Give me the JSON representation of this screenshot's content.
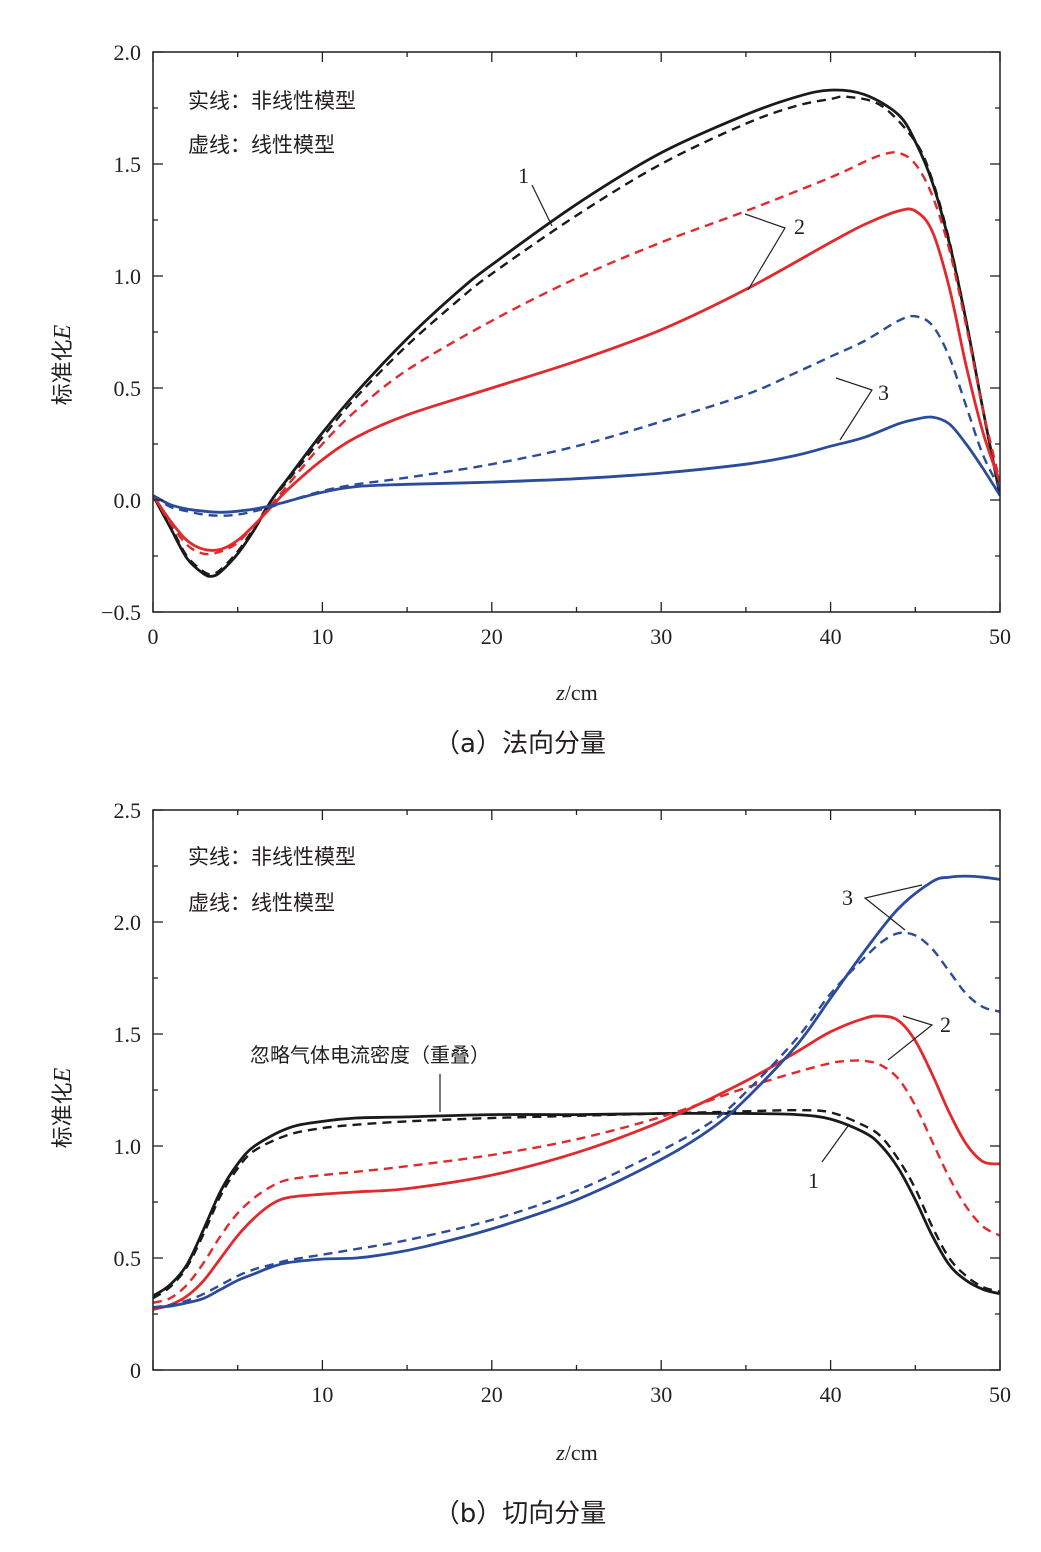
{
  "chart_data": [
    {
      "type": "line",
      "caption": "（a）法向分量",
      "xlabel_italic": "z",
      "xlabel_unit": "/cm",
      "ylabel": "标准化",
      "ylabel_italic": "E",
      "xlim": [
        0,
        50
      ],
      "ylim": [
        -0.5,
        2.0
      ],
      "xticks": [
        0,
        10,
        20,
        30,
        40,
        50
      ],
      "xtick_labels": [
        "0",
        "10",
        "20",
        "30",
        "40",
        "50"
      ],
      "yticks": [
        -0.5,
        0.0,
        0.5,
        1.0,
        1.5,
        2.0
      ],
      "ytick_labels": [
        "−0.5",
        "0.0",
        "0.5",
        "1.0",
        "1.5",
        "2.0"
      ],
      "legend_lines": [
        "实线：非线性模型",
        "虚线：线性模型"
      ],
      "legend_position": "top-left",
      "grid": false,
      "series": [
        {
          "label": "1",
          "model": "solid",
          "color": "#1a1a1a",
          "x": [
            0,
            1,
            2,
            3,
            3.5,
            4,
            5,
            6,
            7,
            8,
            10,
            12,
            15,
            18,
            20,
            25,
            30,
            35,
            38,
            40,
            42,
            44,
            45,
            46,
            47,
            48,
            49,
            50
          ],
          "y": [
            0.02,
            -0.12,
            -0.26,
            -0.33,
            -0.34,
            -0.32,
            -0.24,
            -0.13,
            0.0,
            0.1,
            0.3,
            0.48,
            0.72,
            0.93,
            1.05,
            1.32,
            1.55,
            1.72,
            1.8,
            1.83,
            1.81,
            1.72,
            1.6,
            1.42,
            1.15,
            0.8,
            0.4,
            0.02
          ]
        },
        {
          "label": "1",
          "model": "dashed",
          "color": "#1a1a1a",
          "x": [
            0,
            1,
            2,
            3,
            3.5,
            4,
            5,
            6,
            7,
            8,
            10,
            12,
            15,
            18,
            20,
            25,
            30,
            35,
            38,
            40,
            41,
            43,
            45,
            46,
            47,
            48,
            49,
            50
          ],
          "y": [
            0.02,
            -0.11,
            -0.25,
            -0.32,
            -0.33,
            -0.31,
            -0.23,
            -0.12,
            0.0,
            0.09,
            0.28,
            0.46,
            0.69,
            0.89,
            1.01,
            1.27,
            1.5,
            1.68,
            1.76,
            1.79,
            1.8,
            1.76,
            1.6,
            1.43,
            1.16,
            0.8,
            0.4,
            0.02
          ]
        },
        {
          "label": "2",
          "model": "solid",
          "color": "#e02a2e",
          "x": [
            0,
            1,
            2,
            3,
            4,
            5,
            6,
            7,
            8,
            10,
            12,
            15,
            20,
            25,
            30,
            35,
            40,
            42,
            44,
            45,
            46,
            47,
            48,
            49,
            50
          ],
          "y": [
            0.02,
            -0.09,
            -0.18,
            -0.22,
            -0.22,
            -0.18,
            -0.11,
            -0.03,
            0.05,
            0.18,
            0.28,
            0.38,
            0.5,
            0.62,
            0.76,
            0.94,
            1.15,
            1.23,
            1.29,
            1.29,
            1.2,
            0.95,
            0.6,
            0.3,
            0.08
          ]
        },
        {
          "label": "2",
          "model": "dashed",
          "color": "#e02a2e",
          "x": [
            0,
            1,
            2,
            3,
            4,
            5,
            6,
            7,
            8,
            10,
            12,
            15,
            20,
            25,
            30,
            35,
            40,
            42,
            43,
            44,
            45,
            46,
            47,
            48,
            49,
            50
          ],
          "y": [
            0.02,
            -0.1,
            -0.2,
            -0.24,
            -0.23,
            -0.19,
            -0.11,
            -0.02,
            0.07,
            0.25,
            0.4,
            0.58,
            0.8,
            0.99,
            1.15,
            1.29,
            1.44,
            1.51,
            1.54,
            1.55,
            1.5,
            1.36,
            1.12,
            0.78,
            0.4,
            0.08
          ]
        },
        {
          "label": "3",
          "model": "solid",
          "color": "#2b4b9b",
          "x": [
            0,
            1,
            2,
            3,
            4,
            5,
            6,
            7,
            8,
            10,
            12,
            15,
            20,
            25,
            30,
            35,
            38,
            40,
            42,
            44,
            45,
            46,
            47,
            48,
            49,
            50
          ],
          "y": [
            0.02,
            -0.02,
            -0.04,
            -0.05,
            -0.055,
            -0.05,
            -0.04,
            -0.025,
            -0.005,
            0.035,
            0.06,
            0.07,
            0.08,
            0.095,
            0.12,
            0.16,
            0.2,
            0.24,
            0.28,
            0.34,
            0.36,
            0.37,
            0.34,
            0.25,
            0.14,
            0.02
          ]
        },
        {
          "label": "3",
          "model": "dashed",
          "color": "#2b4b9b",
          "x": [
            0,
            1,
            2,
            3,
            4,
            5,
            6,
            7,
            8,
            10,
            12,
            15,
            20,
            25,
            30,
            35,
            38,
            40,
            42,
            44,
            45,
            46,
            47,
            48,
            49,
            50
          ],
          "y": [
            0.02,
            -0.03,
            -0.05,
            -0.065,
            -0.07,
            -0.065,
            -0.05,
            -0.03,
            -0.005,
            0.04,
            0.07,
            0.1,
            0.16,
            0.24,
            0.35,
            0.47,
            0.57,
            0.64,
            0.71,
            0.8,
            0.82,
            0.78,
            0.64,
            0.42,
            0.2,
            0.05
          ]
        }
      ]
    },
    {
      "type": "line",
      "caption": "（b）切向分量",
      "xlabel_italic": "z",
      "xlabel_unit": "/cm",
      "ylabel": "标准化",
      "ylabel_italic": "E",
      "xlim": [
        0,
        50
      ],
      "ylim": [
        0,
        2.5
      ],
      "xticks": [
        10,
        20,
        30,
        40,
        50
      ],
      "xtick_labels": [
        "10",
        "20",
        "30",
        "40",
        "50"
      ],
      "yticks": [
        0,
        0.5,
        1.0,
        1.5,
        2.0,
        2.5
      ],
      "ytick_labels": [
        "0",
        "0.5",
        "1.0",
        "1.5",
        "2.0",
        "2.5"
      ],
      "legend_lines": [
        "实线：非线性模型",
        "虚线：线性模型"
      ],
      "legend_position": "top-left",
      "annotation": "忽略气体电流密度（重叠）",
      "grid": false,
      "series": [
        {
          "label": "1",
          "model": "solid",
          "color": "#1a1a1a",
          "x": [
            0,
            1,
            2,
            3,
            4,
            5,
            6,
            8,
            10,
            12,
            15,
            20,
            25,
            30,
            35,
            38,
            40,
            42,
            43,
            44,
            45,
            46,
            47,
            48,
            49,
            50
          ],
          "y": [
            0.33,
            0.38,
            0.47,
            0.63,
            0.8,
            0.92,
            1.0,
            1.08,
            1.11,
            1.125,
            1.13,
            1.14,
            1.14,
            1.145,
            1.145,
            1.14,
            1.12,
            1.06,
            1.0,
            0.9,
            0.76,
            0.6,
            0.47,
            0.4,
            0.36,
            0.34
          ]
        },
        {
          "label": "1",
          "model": "dashed",
          "color": "#1a1a1a",
          "x": [
            0,
            1,
            2,
            3,
            4,
            5,
            6,
            8,
            10,
            12,
            15,
            20,
            25,
            30,
            35,
            38,
            40,
            42,
            43,
            44,
            45,
            46,
            47,
            48,
            49,
            50
          ],
          "y": [
            0.32,
            0.37,
            0.46,
            0.61,
            0.78,
            0.9,
            0.98,
            1.05,
            1.08,
            1.095,
            1.11,
            1.125,
            1.135,
            1.145,
            1.155,
            1.16,
            1.15,
            1.09,
            1.04,
            0.94,
            0.81,
            0.64,
            0.5,
            0.42,
            0.37,
            0.35
          ]
        },
        {
          "label": "2",
          "model": "solid",
          "color": "#e02a2e",
          "x": [
            0,
            1,
            2,
            3,
            4,
            5,
            6,
            7,
            8,
            10,
            12,
            15,
            20,
            25,
            30,
            35,
            38,
            40,
            42,
            43,
            44,
            45,
            46,
            47,
            48,
            49,
            50
          ],
          "y": [
            0.27,
            0.29,
            0.33,
            0.4,
            0.5,
            0.6,
            0.68,
            0.74,
            0.77,
            0.785,
            0.795,
            0.81,
            0.87,
            0.97,
            1.11,
            1.29,
            1.42,
            1.51,
            1.57,
            1.58,
            1.56,
            1.47,
            1.32,
            1.15,
            1.01,
            0.93,
            0.92
          ]
        },
        {
          "label": "2",
          "model": "dashed",
          "color": "#e02a2e",
          "x": [
            0,
            1,
            2,
            3,
            4,
            5,
            6,
            7,
            8,
            10,
            12,
            15,
            20,
            25,
            30,
            35,
            38,
            40,
            41,
            42,
            43,
            44,
            45,
            46,
            47,
            48,
            49,
            50
          ],
          "y": [
            0.3,
            0.32,
            0.38,
            0.48,
            0.6,
            0.7,
            0.77,
            0.82,
            0.85,
            0.87,
            0.885,
            0.91,
            0.96,
            1.03,
            1.13,
            1.26,
            1.33,
            1.37,
            1.38,
            1.38,
            1.36,
            1.3,
            1.18,
            1.02,
            0.86,
            0.73,
            0.64,
            0.6
          ]
        },
        {
          "label": "3",
          "model": "solid",
          "color": "#2b4b9b",
          "x": [
            0,
            1,
            2,
            3,
            4,
            5,
            6,
            7,
            8,
            10,
            12,
            14,
            16,
            20,
            25,
            30,
            33,
            35,
            38,
            40,
            42,
            44,
            46,
            47,
            48,
            49,
            50
          ],
          "y": [
            0.28,
            0.285,
            0.3,
            0.32,
            0.36,
            0.4,
            0.43,
            0.46,
            0.48,
            0.495,
            0.5,
            0.52,
            0.55,
            0.63,
            0.76,
            0.94,
            1.08,
            1.21,
            1.45,
            1.66,
            1.87,
            2.06,
            2.18,
            2.2,
            2.205,
            2.2,
            2.19
          ]
        },
        {
          "label": "3",
          "model": "dashed",
          "color": "#2b4b9b",
          "x": [
            0,
            1,
            2,
            3,
            4,
            5,
            6,
            7,
            8,
            10,
            12,
            15,
            20,
            25,
            30,
            33,
            35,
            38,
            40,
            42,
            43,
            44,
            45,
            46,
            47,
            48,
            49,
            50
          ],
          "y": [
            0.28,
            0.29,
            0.31,
            0.34,
            0.38,
            0.42,
            0.45,
            0.47,
            0.49,
            0.515,
            0.54,
            0.58,
            0.67,
            0.8,
            0.98,
            1.11,
            1.24,
            1.48,
            1.68,
            1.84,
            1.91,
            1.95,
            1.94,
            1.88,
            1.78,
            1.68,
            1.62,
            1.6
          ]
        }
      ]
    }
  ]
}
